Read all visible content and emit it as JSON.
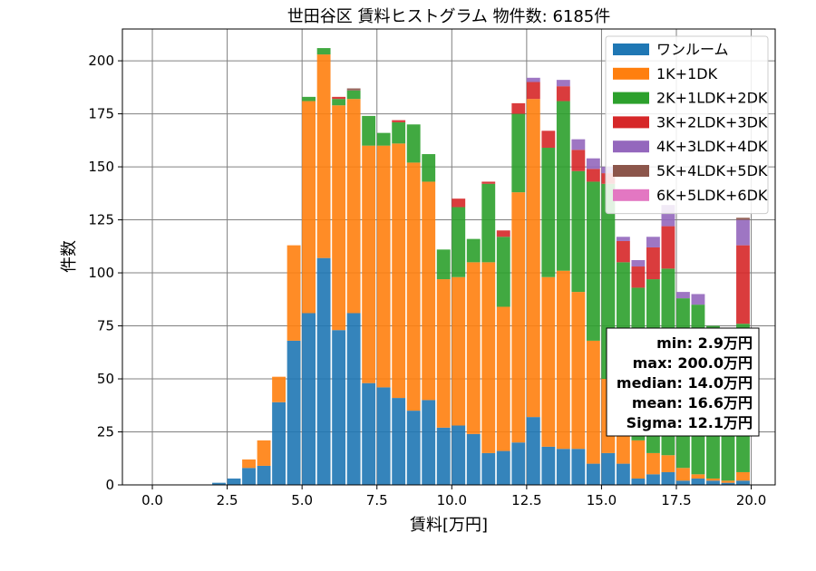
{
  "chart_data": {
    "type": "bar",
    "title": "世田谷区 賃料ヒストグラム 物件数: 6185件",
    "xlabel": "賃料[万円]",
    "ylabel": "件数",
    "xlim": [
      -1.0,
      20.8
    ],
    "ylim": [
      0,
      215
    ],
    "stacked": true,
    "grid": true,
    "legend_position": "top-right",
    "bin_width": 0.5,
    "x_ticks": [
      0.0,
      2.5,
      5.0,
      7.5,
      10.0,
      12.5,
      15.0,
      17.5,
      20.0
    ],
    "x_tick_labels": [
      "0.0",
      "2.5",
      "5.0",
      "7.5",
      "10.0",
      "12.5",
      "15.0",
      "17.5",
      "20.0"
    ],
    "y_ticks": [
      0,
      25,
      50,
      75,
      100,
      125,
      150,
      175,
      200
    ],
    "y_tick_labels": [
      "0",
      "25",
      "50",
      "75",
      "100",
      "125",
      "150",
      "175",
      "200"
    ],
    "x": [
      2.0,
      2.5,
      3.0,
      3.5,
      4.0,
      4.5,
      5.0,
      5.5,
      6.0,
      6.5,
      7.0,
      7.5,
      8.0,
      8.5,
      9.0,
      9.5,
      10.0,
      10.5,
      11.0,
      11.5,
      12.0,
      12.5,
      13.0,
      13.5,
      14.0,
      14.5,
      15.0,
      15.5,
      16.0,
      16.5,
      17.0,
      17.5,
      18.0,
      18.5,
      19.0,
      19.5
    ],
    "series": [
      {
        "name": "ワンルーム",
        "color": "#1f77b4",
        "values": [
          1,
          3,
          8,
          9,
          39,
          68,
          81,
          107,
          73,
          81,
          48,
          46,
          41,
          35,
          40,
          27,
          28,
          24,
          15,
          16,
          20,
          32,
          18,
          17,
          17,
          10,
          15,
          10,
          3,
          5,
          6,
          2,
          3,
          2,
          1,
          2
        ]
      },
      {
        "name": "1K+1DK",
        "color": "#ff7f0e",
        "values": [
          0,
          0,
          4,
          12,
          12,
          45,
          100,
          96,
          106,
          101,
          112,
          114,
          120,
          117,
          103,
          70,
          70,
          81,
          90,
          68,
          118,
          150,
          80,
          84,
          74,
          58,
          35,
          14,
          18,
          10,
          8,
          6,
          2,
          1,
          1,
          4
        ]
      },
      {
        "name": "2K+1LDK+2DK",
        "color": "#2ca02c",
        "values": [
          0,
          0,
          0,
          0,
          0,
          0,
          2,
          3,
          3,
          4,
          14,
          6,
          10,
          18,
          13,
          14,
          33,
          11,
          37,
          33,
          37,
          0,
          61,
          80,
          57,
          75,
          92,
          81,
          72,
          82,
          88,
          80,
          80,
          72,
          61,
          70
        ]
      },
      {
        "name": "3K+2LDK+3DK",
        "color": "#d62728",
        "values": [
          0,
          0,
          0,
          0,
          0,
          0,
          0,
          0,
          1,
          0,
          0,
          0,
          1,
          0,
          0,
          0,
          4,
          0,
          1,
          3,
          5,
          8,
          8,
          7,
          10,
          6,
          5,
          10,
          10,
          15,
          20,
          0,
          0,
          0,
          0,
          37
        ]
      },
      {
        "name": "4K+3LDK+4DK",
        "color": "#9467bd",
        "values": [
          0,
          0,
          0,
          0,
          0,
          0,
          0,
          0,
          0,
          0,
          0,
          0,
          0,
          0,
          0,
          0,
          0,
          0,
          0,
          0,
          0,
          2,
          0,
          3,
          5,
          5,
          3,
          2,
          3,
          5,
          10,
          3,
          5,
          0,
          2,
          12
        ]
      },
      {
        "name": "5K+4LDK+5DK",
        "color": "#8c564b",
        "values": [
          0,
          0,
          0,
          0,
          0,
          0,
          0,
          0,
          0,
          1,
          0,
          0,
          0,
          0,
          0,
          0,
          0,
          0,
          0,
          0,
          0,
          0,
          0,
          0,
          0,
          0,
          0,
          0,
          0,
          0,
          0,
          0,
          0,
          0,
          0,
          1
        ]
      },
      {
        "name": "6K+5LDK+6DK",
        "color": "#e377c2",
        "values": [
          0,
          0,
          0,
          0,
          0,
          0,
          0,
          0,
          0,
          0,
          0,
          0,
          0,
          0,
          0,
          0,
          0,
          0,
          0,
          0,
          0,
          0,
          0,
          0,
          0,
          0,
          0,
          0,
          0,
          0,
          0,
          0,
          0,
          0,
          0,
          0
        ]
      }
    ],
    "stats_box": {
      "lines": [
        "min: 2.9万円",
        "max: 200.0万円",
        "median: 14.0万円",
        "mean: 16.6万円",
        "Sigma: 12.1万円"
      ]
    }
  }
}
